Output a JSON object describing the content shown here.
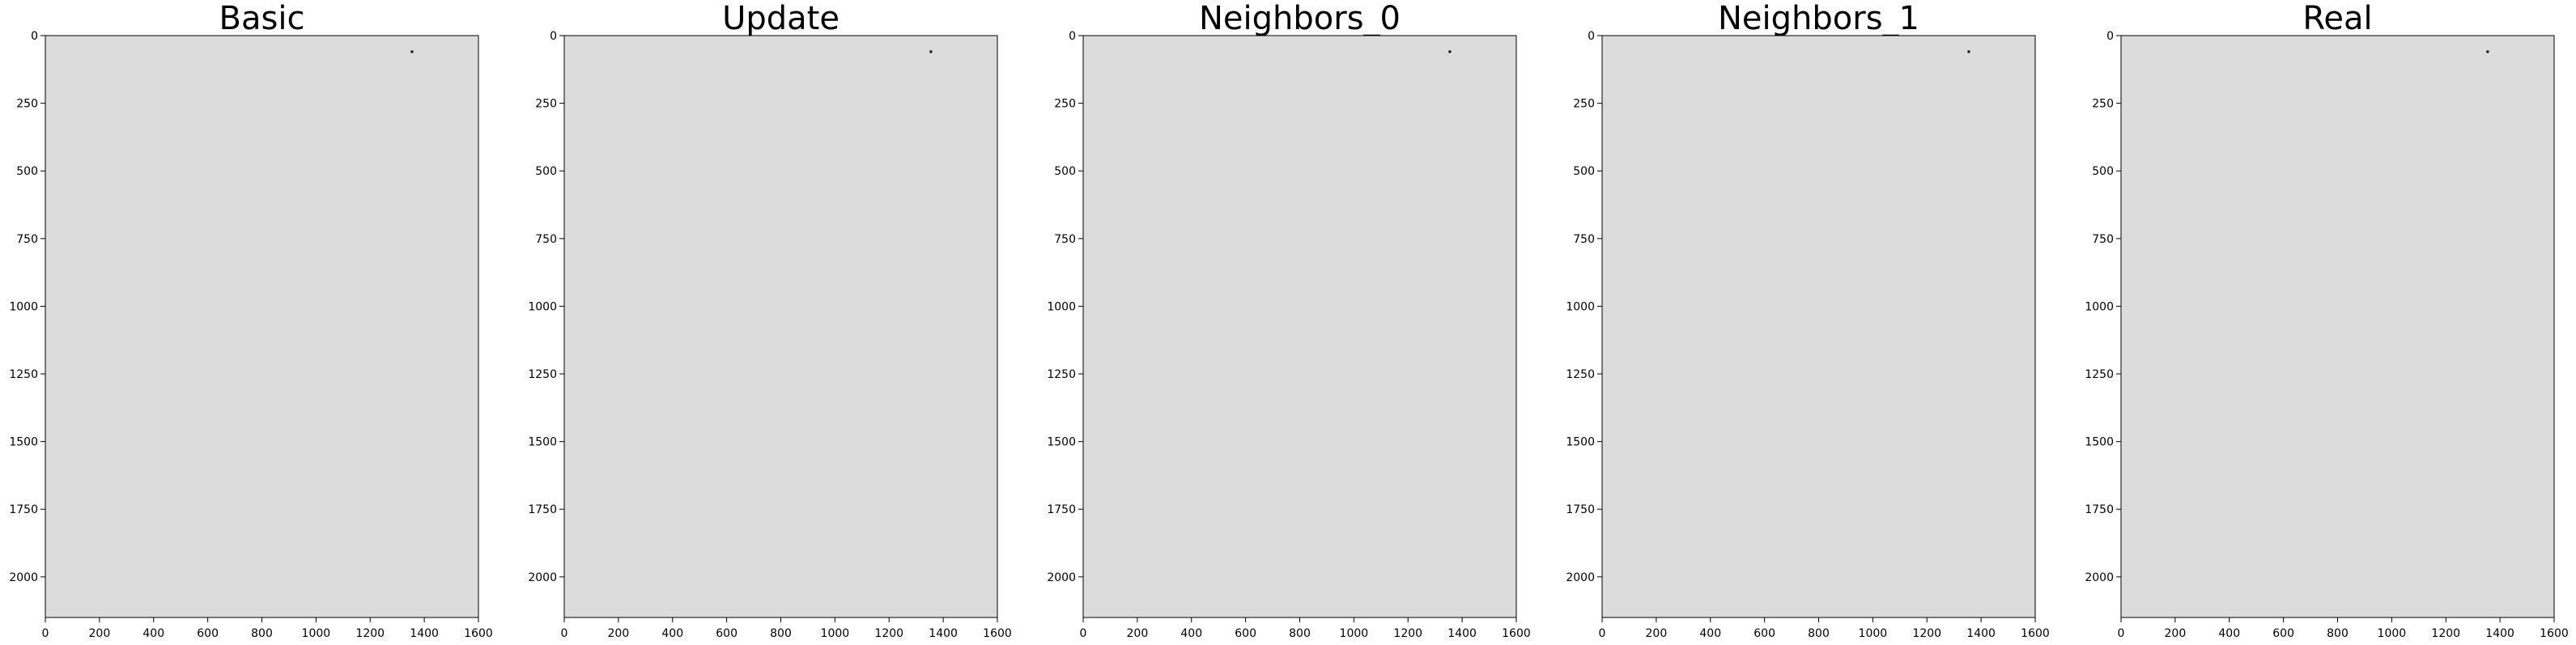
{
  "colors": {
    "background": "#dcdcdc",
    "green": "#a6dd9b",
    "dark": "#0a0f0a",
    "mixed": "#2e3a2d",
    "gap": "#ffffff",
    "water": "#cfe3e7"
  },
  "chart_data": [
    {
      "type": "heatmap",
      "title": "Basic",
      "xlim": [
        0,
        1600
      ],
      "ylim": [
        2150,
        0
      ],
      "x_ticks": [
        "0",
        "200",
        "400",
        "600",
        "800",
        "1000",
        "1200",
        "1400",
        "1600"
      ],
      "y_ticks": [
        "0",
        "250",
        "500",
        "750",
        "1000",
        "1250",
        "1500",
        "1750",
        "2000"
      ],
      "grid": false,
      "style": {
        "dark_fraction": 0.55,
        "white_fraction": 0.0,
        "speckle": true
      }
    },
    {
      "type": "heatmap",
      "title": "Update",
      "xlim": [
        0,
        1600
      ],
      "ylim": [
        2150,
        0
      ],
      "x_ticks": [
        "0",
        "200",
        "400",
        "600",
        "800",
        "1000",
        "1200",
        "1400",
        "1600"
      ],
      "y_ticks": [
        "0",
        "250",
        "500",
        "750",
        "1000",
        "1250",
        "1500",
        "1750",
        "2000"
      ],
      "grid": false,
      "style": {
        "dark_fraction": 0.55,
        "white_fraction": 0.12,
        "speckle": true
      }
    },
    {
      "type": "heatmap",
      "title": "Neighbors_0",
      "xlim": [
        0,
        1600
      ],
      "ylim": [
        2150,
        0
      ],
      "x_ticks": [
        "0",
        "200",
        "400",
        "600",
        "800",
        "1000",
        "1200",
        "1400",
        "1600"
      ],
      "y_ticks": [
        "0",
        "250",
        "500",
        "750",
        "1000",
        "1250",
        "1500",
        "1750",
        "2000"
      ],
      "grid": false,
      "style": {
        "dark_fraction": 0.5,
        "white_fraction": 0.0,
        "speckle": true
      }
    },
    {
      "type": "heatmap",
      "title": "Neighbors_1",
      "xlim": [
        0,
        1600
      ],
      "ylim": [
        2150,
        0
      ],
      "x_ticks": [
        "0",
        "200",
        "400",
        "600",
        "800",
        "1000",
        "1200",
        "1400",
        "1600"
      ],
      "y_ticks": [
        "0",
        "250",
        "500",
        "750",
        "1000",
        "1250",
        "1500",
        "1750",
        "2000"
      ],
      "grid": false,
      "style": {
        "dark_fraction": 0.7,
        "white_fraction": 0.1,
        "speckle": false
      }
    },
    {
      "type": "heatmap",
      "title": "Real",
      "xlim": [
        0,
        1600
      ],
      "ylim": [
        2150,
        0
      ],
      "x_ticks": [
        "0",
        "200",
        "400",
        "600",
        "800",
        "1000",
        "1200",
        "1400",
        "1600"
      ],
      "y_ticks": [
        "0",
        "250",
        "500",
        "750",
        "1000",
        "1250",
        "1500",
        "1750",
        "2000"
      ],
      "grid": false,
      "style": {
        "dark_fraction": 0.6,
        "white_fraction": 0.08,
        "speckle": false
      }
    }
  ]
}
